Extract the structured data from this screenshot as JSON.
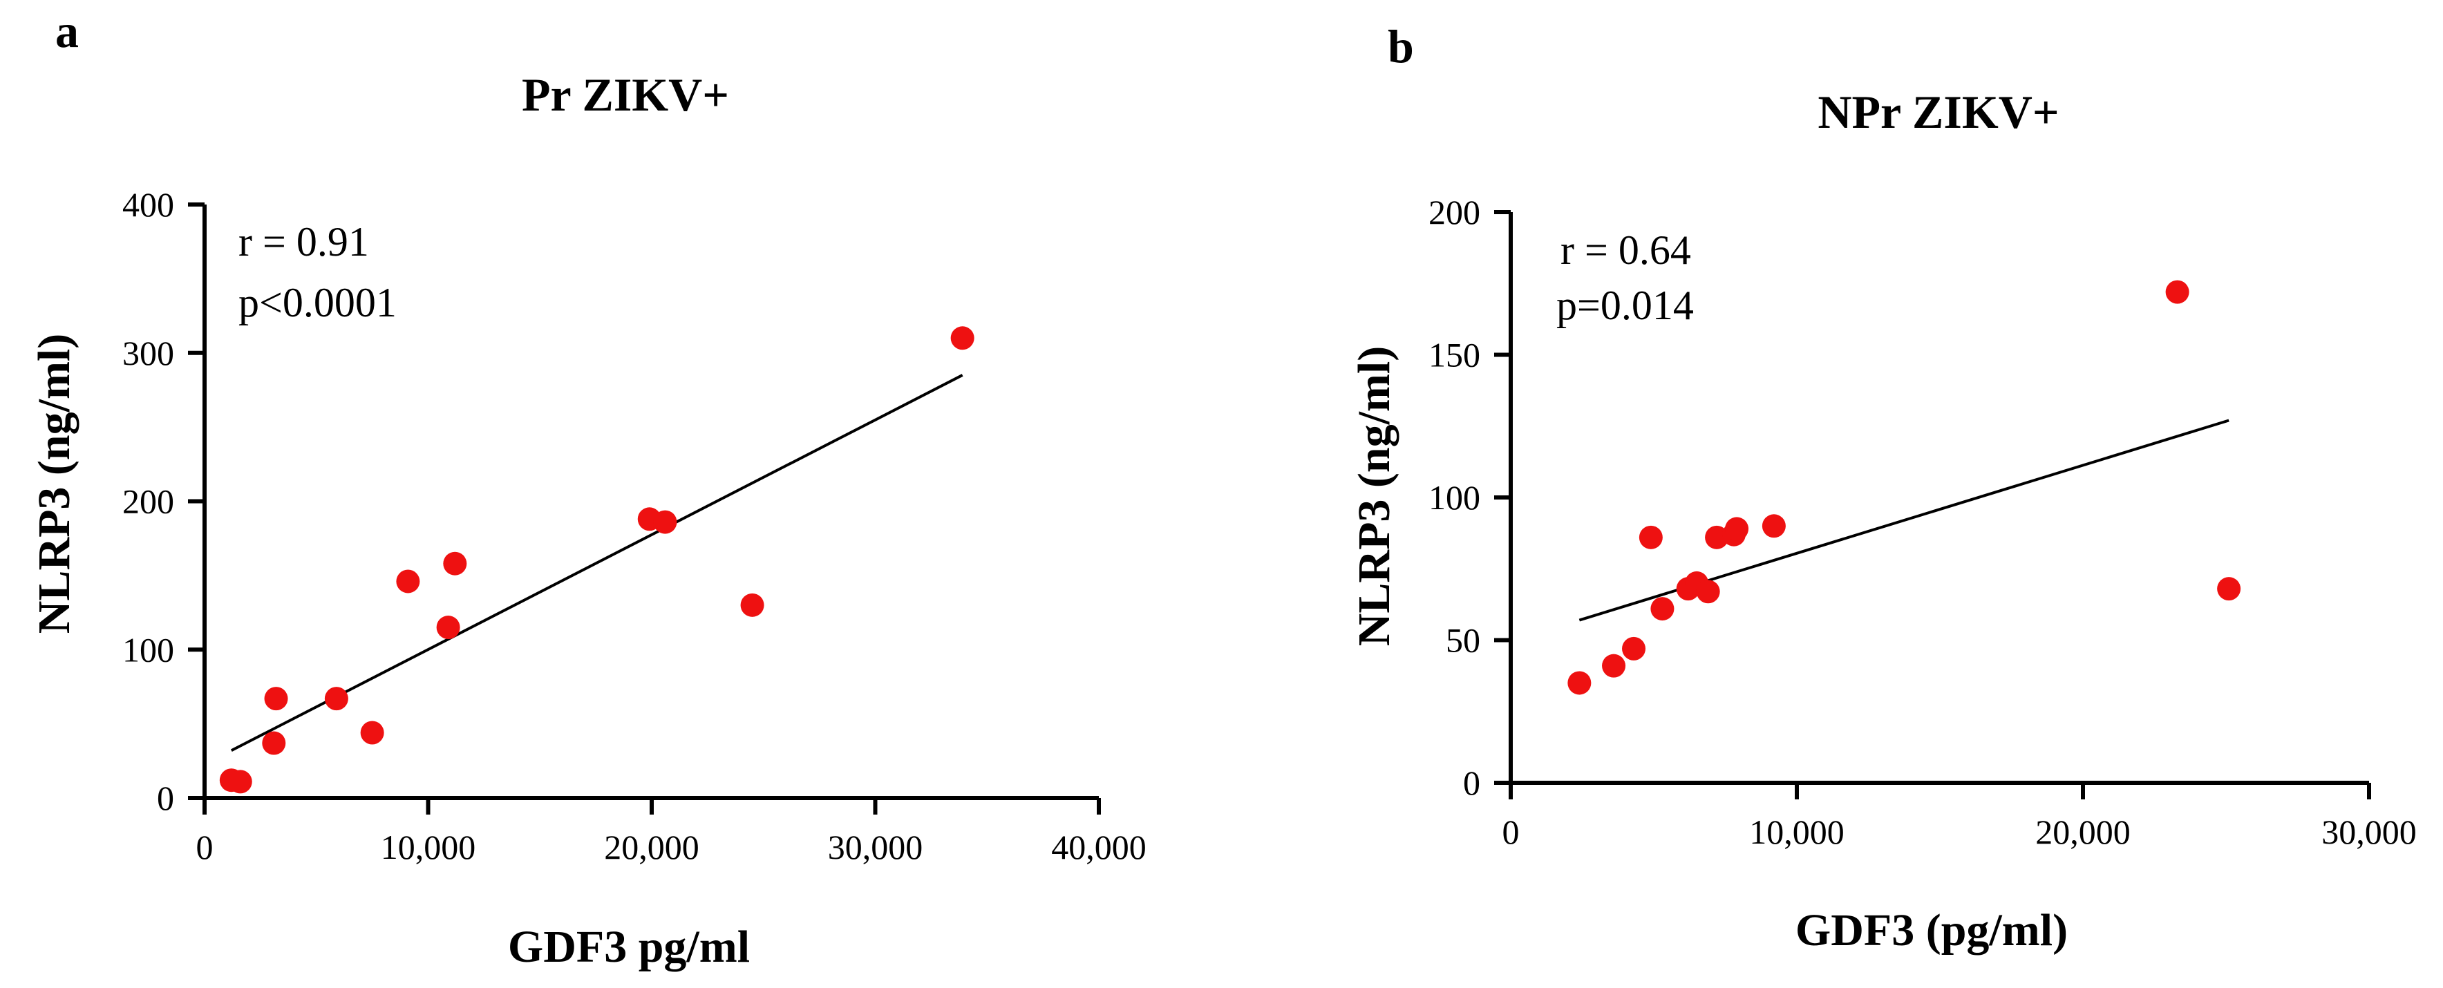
{
  "figure": {
    "panels": [
      "a",
      "b"
    ]
  },
  "chart_data": [
    {
      "panel": "a",
      "type": "scatter",
      "title": "Pr ZIKV+",
      "xlabel": "GDF3 pg/ml",
      "ylabel": "NLRP3 (ng/ml)",
      "xlim": [
        0,
        40000
      ],
      "ylim": [
        0,
        400
      ],
      "x_ticks": [
        0,
        10000,
        20000,
        30000,
        40000
      ],
      "x_tick_labels": [
        "0",
        "10,000",
        "20,000",
        "30,000",
        "40,000"
      ],
      "y_ticks": [
        0,
        100,
        200,
        300,
        400
      ],
      "y_tick_labels": [
        "0",
        "100",
        "200",
        "300",
        "400"
      ],
      "annotations": [
        "r = 0.91",
        "p<0.0001"
      ],
      "point_color": "#ee1111",
      "points": [
        {
          "x": 1200,
          "y": 12
        },
        {
          "x": 1600,
          "y": 11
        },
        {
          "x": 3100,
          "y": 37
        },
        {
          "x": 3200,
          "y": 67
        },
        {
          "x": 5900,
          "y": 67
        },
        {
          "x": 7500,
          "y": 44
        },
        {
          "x": 9100,
          "y": 146
        },
        {
          "x": 10900,
          "y": 115
        },
        {
          "x": 11200,
          "y": 158
        },
        {
          "x": 19900,
          "y": 188
        },
        {
          "x": 20600,
          "y": 186
        },
        {
          "x": 24500,
          "y": 130
        },
        {
          "x": 33900,
          "y": 310
        }
      ],
      "fit_line": {
        "x": [
          1200,
          33900
        ],
        "y": [
          32,
          285
        ]
      }
    },
    {
      "panel": "b",
      "type": "scatter",
      "title": "NPr ZIKV+",
      "xlabel": "GDF3 (pg/ml)",
      "ylabel": "NLRP3 (ng/ml)",
      "xlim": [
        0,
        30000
      ],
      "ylim": [
        0,
        200
      ],
      "x_ticks": [
        0,
        10000,
        20000,
        30000
      ],
      "x_tick_labels": [
        "0",
        "10,000",
        "20,000",
        "30,000"
      ],
      "y_ticks": [
        0,
        50,
        100,
        150,
        200
      ],
      "y_tick_labels": [
        "0",
        "50",
        "100",
        "150",
        "200"
      ],
      "annotations": [
        "r = 0.64",
        "p=0.014"
      ],
      "point_color": "#ee1111",
      "points": [
        {
          "x": 2400,
          "y": 35
        },
        {
          "x": 3600,
          "y": 41
        },
        {
          "x": 4300,
          "y": 47
        },
        {
          "x": 4900,
          "y": 86
        },
        {
          "x": 5300,
          "y": 61
        },
        {
          "x": 6200,
          "y": 68
        },
        {
          "x": 6500,
          "y": 70
        },
        {
          "x": 6900,
          "y": 67
        },
        {
          "x": 7200,
          "y": 86
        },
        {
          "x": 7800,
          "y": 87
        },
        {
          "x": 7900,
          "y": 89
        },
        {
          "x": 9200,
          "y": 90
        },
        {
          "x": 23300,
          "y": 172
        },
        {
          "x": 25100,
          "y": 68
        }
      ],
      "fit_line": {
        "x": [
          2400,
          25100
        ],
        "y": [
          57,
          127
        ]
      }
    }
  ]
}
